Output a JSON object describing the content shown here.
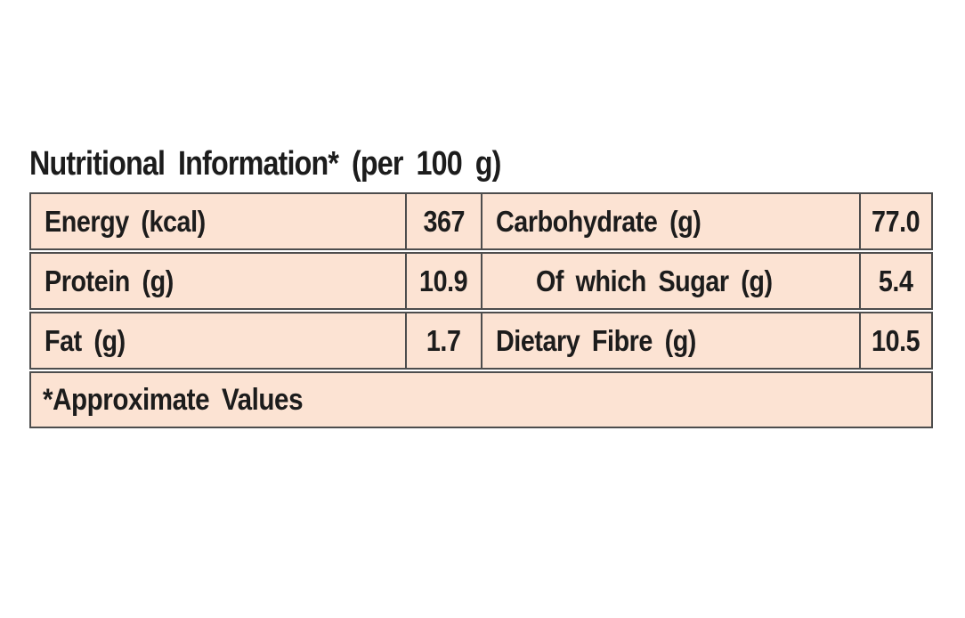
{
  "title": "Nutritional Information* (per 100 g)",
  "table": {
    "rows": [
      {
        "label1": "Energy (kcal)",
        "value1": "367",
        "label2": "Carbohydrate (g)",
        "value2": "77.0"
      },
      {
        "label1": "Protein (g)",
        "value1": "10.9",
        "label2": "Of which Sugar (g)",
        "value2": "5.4"
      },
      {
        "label1": "Fat (g)",
        "value1": "1.7",
        "label2": "Dietary Fibre (g)",
        "value2": "10.5"
      }
    ],
    "footnote": "*Approximate Values"
  },
  "colors": {
    "cell_background": "#fce3d3",
    "border": "#4d4d4d",
    "text": "#1c1c1c",
    "page_background": "#ffffff"
  }
}
